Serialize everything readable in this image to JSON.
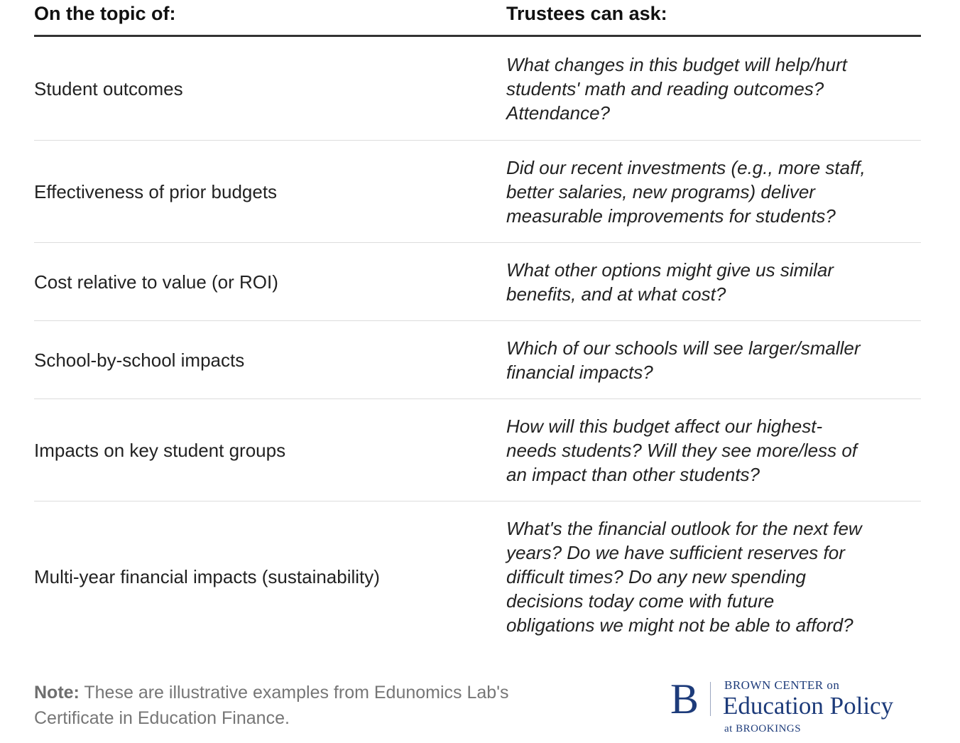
{
  "table": {
    "headers": {
      "topic": "On the topic of:",
      "ask": "Trustees can ask:"
    },
    "rows": [
      {
        "topic": "Student outcomes",
        "ask_lines": [
          "What changes in this budget will help/hurt",
          "students' math and reading outcomes?",
          "Attendance?"
        ]
      },
      {
        "topic": "Effectiveness of prior budgets",
        "ask_lines": [
          "Did our recent investments (e.g., more staff,",
          "better salaries, new programs) deliver",
          "measurable improvements for students?"
        ]
      },
      {
        "topic": "Cost relative to value (or ROI)",
        "ask_lines": [
          "What other options might give us similar",
          "benefits, and at what cost?"
        ]
      },
      {
        "topic": "School-by-school impacts",
        "ask_lines": [
          "Which of our schools will see larger/smaller",
          "financial impacts?"
        ]
      },
      {
        "topic": "Impacts on key student groups",
        "ask_lines": [
          "How will this budget affect our highest-",
          "needs students? Will they see more/less of",
          "an impact than other students?"
        ]
      },
      {
        "topic": "Multi-year financial impacts (sustainability)",
        "ask_lines": [
          "What's the financial outlook for the next few",
          "years? Do we have sufficient reserves for",
          "difficult times? Do any new spending",
          "decisions today come with future",
          "obligations we might not be able to afford?"
        ]
      }
    ]
  },
  "note": {
    "label": "Note:",
    "line1": " These are illustrative examples from Edunomics Lab's",
    "line2": "Certificate in Education Finance."
  },
  "logo": {
    "mark": "B",
    "top": "BROWN CENTER on",
    "main": "Education Policy",
    "bottom": "at BROOKINGS"
  },
  "colors": {
    "text": "#222222",
    "note": "#767676",
    "header_rule": "#333333",
    "row_rule": "#dcdcdc",
    "logo": "#1d3b7a"
  }
}
